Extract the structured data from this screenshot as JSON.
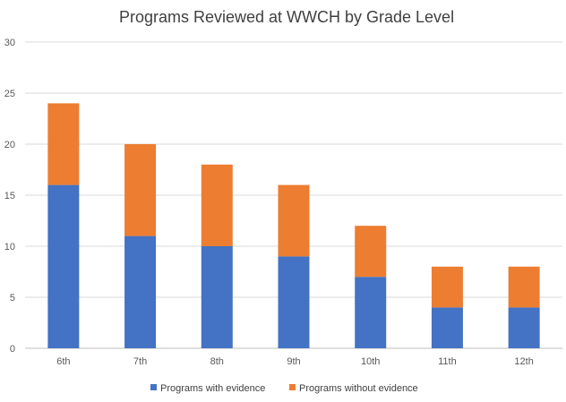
{
  "chart_data": {
    "type": "bar",
    "stacked": true,
    "title": "Programs Reviewed at WWCH by Grade Level",
    "xlabel": "",
    "ylabel": "",
    "categories": [
      "6th",
      "7th",
      "8th",
      "9th",
      "10th",
      "11th",
      "12th"
    ],
    "series": [
      {
        "name": "Programs with evidence",
        "color": "#4472C4",
        "values": [
          16,
          11,
          10,
          9,
          7,
          4,
          4
        ]
      },
      {
        "name": "Programs without evidence",
        "color": "#ED7D31",
        "values": [
          8,
          9,
          8,
          7,
          5,
          4,
          4
        ]
      }
    ],
    "ylim": [
      0,
      30
    ],
    "yticks": [
      0,
      5,
      10,
      15,
      20,
      25,
      30
    ],
    "grid": true,
    "legend_position": "bottom"
  }
}
